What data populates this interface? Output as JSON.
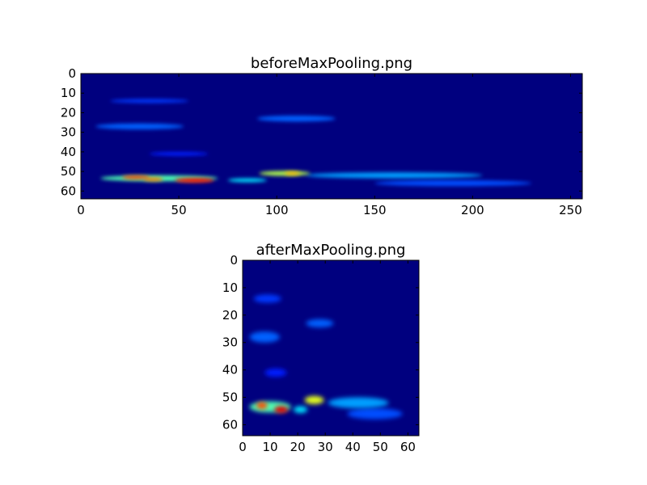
{
  "chart_data": [
    {
      "type": "heatmap",
      "title": "beforeMaxPooling.png",
      "colormap": "jet",
      "xlim": [
        0,
        256
      ],
      "ylim": [
        64,
        0
      ],
      "xticks": [
        "0",
        "50",
        "100",
        "150",
        "200",
        "250"
      ],
      "yticks": [
        "0",
        "10",
        "20",
        "30",
        "40",
        "50",
        "60"
      ],
      "background_color": "#00007f",
      "features": [
        {
          "x": 35,
          "y": 14,
          "w": 40,
          "h": 2,
          "v": 0.18
        },
        {
          "x": 30,
          "y": 27,
          "w": 45,
          "h": 3,
          "v": 0.22
        },
        {
          "x": 110,
          "y": 23,
          "w": 40,
          "h": 3,
          "v": 0.22
        },
        {
          "x": 50,
          "y": 41,
          "w": 30,
          "h": 2,
          "v": 0.15
        },
        {
          "x": 40,
          "y": 53.5,
          "w": 60,
          "h": 3,
          "v": 0.45
        },
        {
          "x": 28,
          "y": 53,
          "w": 14,
          "h": 2,
          "v": 0.8
        },
        {
          "x": 37,
          "y": 54,
          "w": 10,
          "h": 2,
          "v": 0.75
        },
        {
          "x": 58,
          "y": 54.5,
          "w": 20,
          "h": 2.5,
          "v": 0.85
        },
        {
          "x": 104,
          "y": 51,
          "w": 26,
          "h": 2.5,
          "v": 0.55
        },
        {
          "x": 108,
          "y": 51,
          "w": 8,
          "h": 1.5,
          "v": 0.7
        },
        {
          "x": 160,
          "y": 52,
          "w": 90,
          "h": 3,
          "v": 0.28
        },
        {
          "x": 190,
          "y": 56,
          "w": 80,
          "h": 3,
          "v": 0.2
        },
        {
          "x": 85,
          "y": 54.5,
          "w": 20,
          "h": 2,
          "v": 0.35
        }
      ]
    },
    {
      "type": "heatmap",
      "title": "afterMaxPooling.png",
      "colormap": "jet",
      "xlim": [
        0,
        64
      ],
      "ylim": [
        64,
        0
      ],
      "xticks": [
        "0",
        "10",
        "20",
        "30",
        "40",
        "50",
        "60"
      ],
      "yticks": [
        "0",
        "10",
        "20",
        "30",
        "40",
        "50",
        "60"
      ],
      "background_color": "#00007f",
      "features": [
        {
          "x": 9,
          "y": 14,
          "w": 10,
          "h": 3,
          "v": 0.18
        },
        {
          "x": 8,
          "y": 28,
          "w": 11,
          "h": 4,
          "v": 0.22
        },
        {
          "x": 28,
          "y": 23,
          "w": 10,
          "h": 3,
          "v": 0.22
        },
        {
          "x": 12,
          "y": 41,
          "w": 8,
          "h": 3,
          "v": 0.15
        },
        {
          "x": 10,
          "y": 53.5,
          "w": 15,
          "h": 4,
          "v": 0.45
        },
        {
          "x": 7,
          "y": 53,
          "w": 4,
          "h": 2.5,
          "v": 0.8
        },
        {
          "x": 14,
          "y": 54.5,
          "w": 5,
          "h": 2.5,
          "v": 0.9
        },
        {
          "x": 26,
          "y": 51,
          "w": 7,
          "h": 3,
          "v": 0.6
        },
        {
          "x": 42,
          "y": 52,
          "w": 22,
          "h": 4,
          "v": 0.28
        },
        {
          "x": 48,
          "y": 56,
          "w": 20,
          "h": 4,
          "v": 0.2
        },
        {
          "x": 21,
          "y": 54.5,
          "w": 5,
          "h": 2.5,
          "v": 0.35
        }
      ]
    }
  ]
}
